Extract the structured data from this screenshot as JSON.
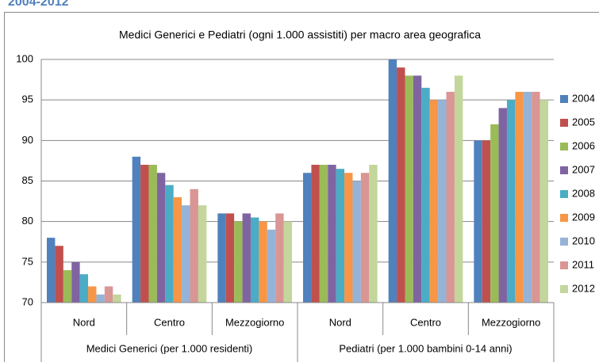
{
  "header": "2004-2012",
  "chart_data": {
    "type": "bar",
    "title": "Medici Generici e Pediatri (ogni 1.000 assistiti) per macro area geografica",
    "categories": [
      "Nord",
      "Centro",
      "Mezzogiorno",
      "Nord",
      "Centro",
      "Mezzogiorno"
    ],
    "groups": [
      "Medici Generici (per 1.000 residenti)",
      "Pediatri (per 1.000 bambini 0-14 anni)"
    ],
    "series": [
      {
        "name": "2004",
        "color": "#4f81bd",
        "values": [
          78,
          88,
          81,
          86,
          100,
          90
        ]
      },
      {
        "name": "2005",
        "color": "#c0504d",
        "values": [
          77,
          87,
          81,
          87,
          99,
          90
        ]
      },
      {
        "name": "2006",
        "color": "#9bbb59",
        "values": [
          74,
          87,
          80,
          87,
          98,
          92
        ]
      },
      {
        "name": "2007",
        "color": "#8064a2",
        "values": [
          75,
          86,
          81,
          87,
          98,
          94
        ]
      },
      {
        "name": "2008",
        "color": "#4bacc6",
        "values": [
          73.5,
          84.5,
          80.5,
          86.5,
          96.5,
          95
        ]
      },
      {
        "name": "2009",
        "color": "#f79646",
        "values": [
          72,
          83,
          80,
          86,
          95,
          96
        ]
      },
      {
        "name": "2010",
        "color": "#95b3d7",
        "values": [
          71,
          82,
          79,
          85,
          95,
          96
        ]
      },
      {
        "name": "2011",
        "color": "#d99694",
        "values": [
          72,
          84,
          81,
          86,
          96,
          96
        ]
      },
      {
        "name": "2012",
        "color": "#c3d69b",
        "values": [
          71,
          82,
          80,
          87,
          98,
          95
        ]
      }
    ],
    "ylim": [
      70,
      100
    ],
    "yticks": [
      70,
      75,
      80,
      85,
      90,
      95,
      100
    ],
    "grid": true,
    "legend": "right"
  }
}
